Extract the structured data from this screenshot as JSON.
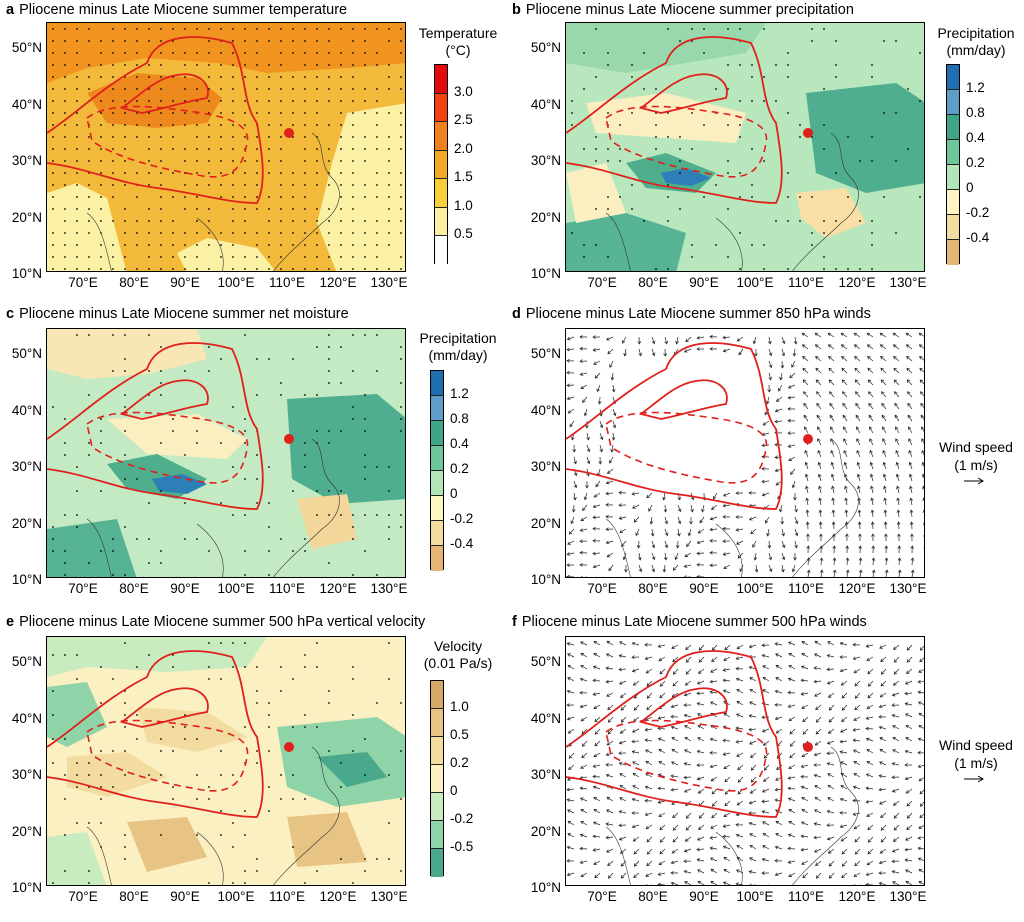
{
  "panels": [
    {
      "letter": "a",
      "title": "Pliocene minus Late Miocene summer temperature"
    },
    {
      "letter": "b",
      "title": "Pliocene minus Late Miocene summer precipitation"
    },
    {
      "letter": "c",
      "title": "Pliocene minus Late Miocene summer net moisture"
    },
    {
      "letter": "d",
      "title": "Pliocene minus Late Miocene summer 850 hPa winds"
    },
    {
      "letter": "e",
      "title": "Pliocene minus Late Miocene summer 500 hPa vertical velocity"
    },
    {
      "letter": "f",
      "title": "Pliocene minus Late Miocene summer 500 hPa winds"
    }
  ],
  "lat_ticks": [
    "50°N",
    "40°N",
    "30°N",
    "20°N",
    "10°N"
  ],
  "lon_ticks": [
    "70°E",
    "80°E",
    "90°E",
    "100°E",
    "110°E",
    "120°E",
    "130°E"
  ],
  "colorbars": {
    "temperature": {
      "title1": "Temperature",
      "title2": "(°C)",
      "labels": [
        "3.0",
        "2.5",
        "2.0",
        "1.5",
        "1.0",
        "0.5"
      ],
      "colors": [
        "#e10b0b",
        "#f0410f",
        "#f08020",
        "#f3a826",
        "#f8cf3a",
        "#fbf0a0",
        "#ffffff"
      ]
    },
    "precipitation": {
      "title1": "Precipitation",
      "title2": "(mm/day)",
      "labels": [
        "1.2",
        "0.8",
        "0.4",
        "0.2",
        "0",
        "-0.2",
        "-0.4"
      ],
      "colors": [
        "#1f6fb0",
        "#5d9ec9",
        "#3ea589",
        "#6cc79a",
        "#b2e6b9",
        "#fdf5c4",
        "#f3dca0",
        "#e6b574"
      ]
    },
    "velocity": {
      "title1": "Velocity",
      "title2": "(0.01 Pa/s)",
      "labels": [
        "1.0",
        "0.5",
        "0.2",
        "0",
        "-0.2",
        "-0.5"
      ],
      "colors": [
        "#d7a868",
        "#e8c484",
        "#f3dca0",
        "#fbf0c2",
        "#c8ecc0",
        "#8fd3a8",
        "#4aa98c"
      ]
    }
  },
  "wind_scale": {
    "line1": "Wind speed",
    "line2": "(1 m/s)"
  },
  "colors": {
    "contour": "#e0201c",
    "site": "#e0201c",
    "stipple": "#000000"
  }
}
